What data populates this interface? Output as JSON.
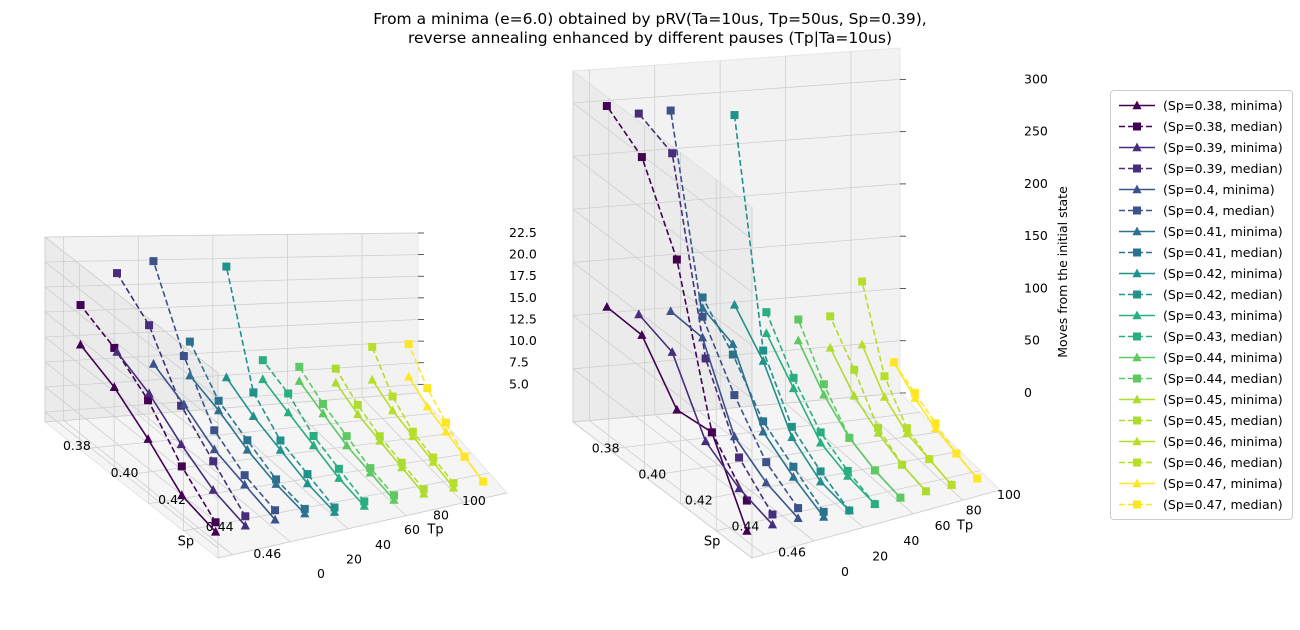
{
  "figure": {
    "title_line1": "From a minima (e=6.0) obtained by pRV(Ta=10us, Tp=50us, Sp=0.39),",
    "title_line2": "reverse annealing enhanced by different pauses (Tp|Ta=10us)"
  },
  "colors": {
    "0.38": "#440154",
    "0.39": "#472d7b",
    "0.4": "#3b528b",
    "0.41": "#2c728e",
    "0.42": "#21918c",
    "0.43": "#28ae80",
    "0.44": "#5ec962",
    "0.45": "#addc30",
    "0.46": "#b8de29",
    "0.47": "#fde725"
  },
  "legend": [
    {
      "label": "(Sp=0.38, minima)",
      "sp": "0.38",
      "kind": "minima"
    },
    {
      "label": "(Sp=0.38, median)",
      "sp": "0.38",
      "kind": "median"
    },
    {
      "label": "(Sp=0.39, minima)",
      "sp": "0.39",
      "kind": "minima"
    },
    {
      "label": "(Sp=0.39, median)",
      "sp": "0.39",
      "kind": "median"
    },
    {
      "label": "(Sp=0.4, minima)",
      "sp": "0.4",
      "kind": "minima"
    },
    {
      "label": "(Sp=0.4, median)",
      "sp": "0.4",
      "kind": "median"
    },
    {
      "label": "(Sp=0.41, minima)",
      "sp": "0.41",
      "kind": "minima"
    },
    {
      "label": "(Sp=0.41, median)",
      "sp": "0.41",
      "kind": "median"
    },
    {
      "label": "(Sp=0.42, minima)",
      "sp": "0.42",
      "kind": "minima"
    },
    {
      "label": "(Sp=0.42, median)",
      "sp": "0.42",
      "kind": "median"
    },
    {
      "label": "(Sp=0.43, minima)",
      "sp": "0.43",
      "kind": "minima"
    },
    {
      "label": "(Sp=0.43, median)",
      "sp": "0.43",
      "kind": "median"
    },
    {
      "label": "(Sp=0.44, minima)",
      "sp": "0.44",
      "kind": "minima"
    },
    {
      "label": "(Sp=0.44, median)",
      "sp": "0.44",
      "kind": "median"
    },
    {
      "label": "(Sp=0.45, minima)",
      "sp": "0.45",
      "kind": "minima"
    },
    {
      "label": "(Sp=0.45, median)",
      "sp": "0.45",
      "kind": "median"
    },
    {
      "label": "(Sp=0.46, minima)",
      "sp": "0.46",
      "kind": "minima"
    },
    {
      "label": "(Sp=0.46, median)",
      "sp": "0.46",
      "kind": "median"
    },
    {
      "label": "(Sp=0.47, minima)",
      "sp": "0.47",
      "kind": "minima"
    },
    {
      "label": "(Sp=0.47, median)",
      "sp": "0.47",
      "kind": "median"
    }
  ],
  "chart_data": [
    {
      "type": "line3d",
      "title": "",
      "xlabel": "Sp",
      "ylabel": "Tp",
      "zlabel": "",
      "xlim": [
        0.375,
        0.475
      ],
      "ylim": [
        0,
        100
      ],
      "zlim": [
        4,
        22.5
      ],
      "xticks": [
        "0.38",
        "0.40",
        "0.42",
        "0.44",
        "0.46"
      ],
      "yticks": [
        "0",
        "20",
        "40",
        "60",
        "80",
        "100"
      ],
      "zticks": [
        "5.0",
        "7.5",
        "10.0",
        "12.5",
        "15.0",
        "17.5",
        "20.0",
        "22.5"
      ],
      "grid": true,
      "tp": [
        10,
        30,
        50,
        70,
        90
      ],
      "series": [
        {
          "sp": 0.38,
          "minima": [
            5.0,
            6.0,
            9.0,
            11.5,
            13.0
          ],
          "median": [
            6.0,
            9.0,
            13.0,
            15.5,
            17.0
          ]
        },
        {
          "sp": 0.39,
          "minima": [
            5.0,
            6.0,
            8.0,
            10.5,
            12.0
          ],
          "median": [
            6.0,
            9.0,
            12.0,
            17.5,
            20.0
          ]
        },
        {
          "sp": 0.4,
          "minima": [
            5.0,
            6.0,
            7.0,
            9.0,
            10.5
          ],
          "median": [
            6.0,
            7.0,
            9.0,
            14.0,
            21.0
          ]
        },
        {
          "sp": 0.41,
          "minima": [
            5.0,
            5.5,
            6.5,
            8.0,
            9.0
          ],
          "median": [
            5.5,
            6.0,
            7.5,
            9.0,
            12.5
          ]
        },
        {
          "sp": 0.42,
          "minima": [
            4.5,
            5.0,
            6.0,
            7.0,
            8.5
          ],
          "median": [
            5.0,
            6.0,
            7.0,
            9.5,
            20.0
          ]
        },
        {
          "sp": 0.43,
          "minima": [
            4.5,
            5.0,
            6.0,
            7.0,
            8.0
          ],
          "median": [
            5.0,
            6.0,
            7.0,
            9.0,
            10.0
          ]
        },
        {
          "sp": 0.44,
          "minima": [
            4.5,
            5.0,
            5.5,
            6.5,
            7.5
          ],
          "median": [
            5.0,
            5.5,
            6.5,
            7.5,
            9.0
          ]
        },
        {
          "sp": 0.45,
          "minima": [
            4.5,
            5.0,
            5.5,
            6.0,
            7.0
          ],
          "median": [
            5.0,
            5.5,
            6.0,
            7.0,
            8.5
          ]
        },
        {
          "sp": 0.46,
          "minima": [
            4.5,
            5.0,
            5.5,
            6.0,
            7.0
          ],
          "median": [
            5.0,
            5.5,
            6.0,
            7.5,
            10.5
          ]
        },
        {
          "sp": 0.47,
          "minima": [
            4.5,
            5.0,
            5.5,
            6.0,
            7.0
          ],
          "median": [
            4.5,
            5.0,
            6.5,
            8.0,
            10.5
          ]
        }
      ]
    },
    {
      "type": "line3d",
      "title": "",
      "xlabel": "Sp",
      "ylabel": "Tp",
      "zlabel": "Moves from the initial state",
      "xlim": [
        0.375,
        0.475
      ],
      "ylim": [
        0,
        100
      ],
      "zlim": [
        0,
        330
      ],
      "xticks": [
        "0.38",
        "0.40",
        "0.42",
        "0.44",
        "0.46"
      ],
      "yticks": [
        "0",
        "20",
        "40",
        "60",
        "80",
        "100"
      ],
      "zticks": [
        "0",
        "50",
        "100",
        "150",
        "200",
        "250",
        "300"
      ],
      "grid": true,
      "tp": [
        10,
        30,
        50,
        70,
        90
      ],
      "series": [
        {
          "sp": 0.38,
          "minima": [
            10,
            80,
            75,
            120,
            120
          ],
          "median": [
            40,
            80,
            220,
            290,
            310
          ]
        },
        {
          "sp": 0.39,
          "minima": [
            10,
            20,
            40,
            100,
            110
          ],
          "median": [
            20,
            50,
            120,
            290,
            300
          ]
        },
        {
          "sp": 0.4,
          "minima": [
            10,
            20,
            40,
            110,
            110
          ],
          "median": [
            20,
            40,
            80,
            130,
            300
          ]
        },
        {
          "sp": 0.41,
          "minima": [
            5,
            20,
            40,
            100,
            110
          ],
          "median": [
            10,
            30,
            50,
            90,
            120
          ]
        },
        {
          "sp": 0.42,
          "minima": [
            5,
            10,
            30,
            80,
            110
          ],
          "median": [
            5,
            20,
            40,
            90,
            290
          ]
        },
        {
          "sp": 0.43,
          "minima": [
            5,
            10,
            20,
            50,
            80
          ],
          "median": [
            5,
            15,
            30,
            60,
            100
          ]
        },
        {
          "sp": 0.44,
          "minima": [
            5,
            10,
            20,
            40,
            70
          ],
          "median": [
            5,
            10,
            20,
            50,
            90
          ]
        },
        {
          "sp": 0.45,
          "minima": [
            5,
            10,
            20,
            35,
            60
          ],
          "median": [
            5,
            10,
            25,
            60,
            90
          ]
        },
        {
          "sp": 0.46,
          "minima": [
            5,
            10,
            15,
            30,
            60
          ],
          "median": [
            5,
            10,
            20,
            50,
            120
          ]
        },
        {
          "sp": 0.47,
          "minima": [
            5,
            10,
            15,
            25,
            40
          ],
          "median": [
            5,
            10,
            20,
            30,
            40
          ]
        }
      ]
    }
  ]
}
